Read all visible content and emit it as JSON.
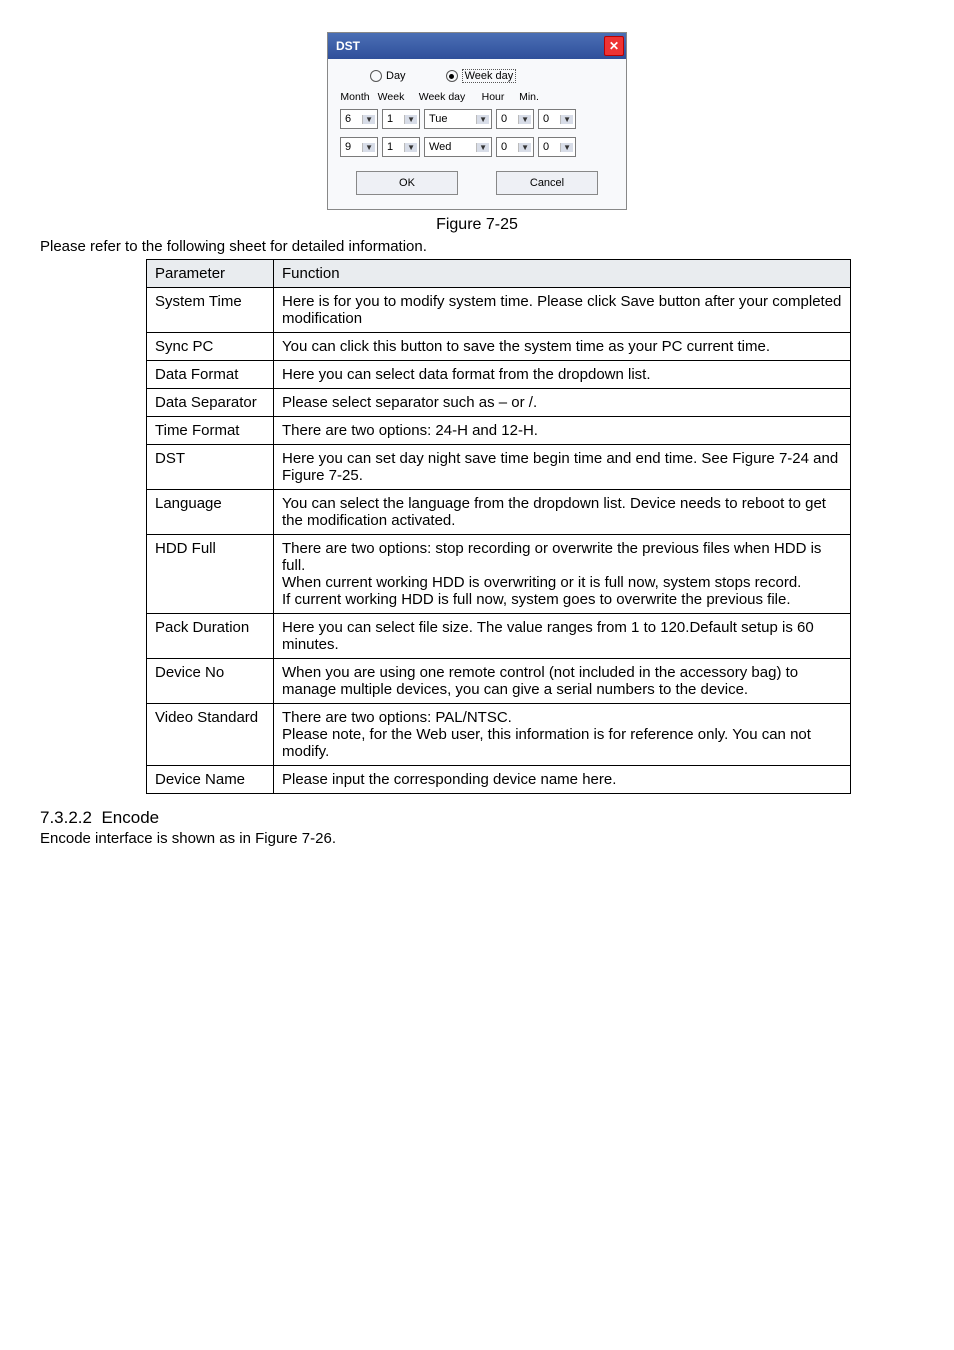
{
  "dialog": {
    "title": "DST",
    "close_glyph": "✕",
    "radios": {
      "day": "Day",
      "weekday": "Week day",
      "selected": "weekday"
    },
    "headers": {
      "month": "Month",
      "week": "Week",
      "weekday": "Week day",
      "hour": "Hour",
      "min": "Min."
    },
    "col_widths": {
      "month": 30,
      "week": 30,
      "weekday": 60,
      "hour": 30,
      "min": 30
    },
    "rows": [
      {
        "month": "6",
        "week": "1",
        "weekday": "Tue",
        "hour": "0",
        "min": "0"
      },
      {
        "month": "9",
        "week": "1",
        "weekday": "Wed",
        "hour": "0",
        "min": "0"
      }
    ],
    "ok": "OK",
    "cancel": "Cancel",
    "colors": {
      "titlebar_from": "#4b6fb5",
      "titlebar_to": "#2f4f9a",
      "close_bg": "#e33"
    }
  },
  "figure_caption": "Figure 7-25",
  "lead_text": "Please refer to the following sheet for detailed information.",
  "table": {
    "head": {
      "param": "Parameter",
      "func": "Function"
    },
    "rows": [
      {
        "param": "System Time",
        "func": "Here is for you to modify system time. Please click Save button after your completed modification"
      },
      {
        "param": "Sync PC",
        "func": "You can click this button to save the system time as your PC current time."
      },
      {
        "param": "Data Format",
        "func": "Here you can select data format from the dropdown list."
      },
      {
        "param": "Data Separator",
        "func": "Please select separator such as – or /."
      },
      {
        "param": "Time Format",
        "func": "There are two options: 24-H and 12-H."
      },
      {
        "param": "DST",
        "func": "Here you can set day night save time begin time and end time. See Figure 7-24 and Figure 7-25."
      },
      {
        "param": "Language",
        "func": "You can select the language from the dropdown list. Device needs to reboot to get the modification activated."
      },
      {
        "param": "HDD Full",
        "func": "There are two options: stop recording or overwrite the previous files when HDD is full.\nWhen current working HDD is overwriting or it is full now, system stops record.\nIf current working HDD is full now, system goes to overwrite the previous file."
      },
      {
        "param": "Pack Duration",
        "func": "Here you can select file size. The value ranges from 1 to 120.Default setup is 60 minutes."
      },
      {
        "param": "Device No",
        "func": "When you are using one remote control (not included in the accessory bag) to manage multiple devices, you can give a serial numbers to the device."
      },
      {
        "param": "Video Standard",
        "func": "There are two options: PAL/NTSC.\nPlease note, for the Web user, this information is for reference only. You can not modify."
      },
      {
        "param": "Device Name",
        "func": "Please input the corresponding device name here."
      }
    ]
  },
  "section": {
    "number": "7.3.2.2",
    "title": "Encode"
  },
  "encode_line": "Encode interface is shown as in Figure 7-26."
}
